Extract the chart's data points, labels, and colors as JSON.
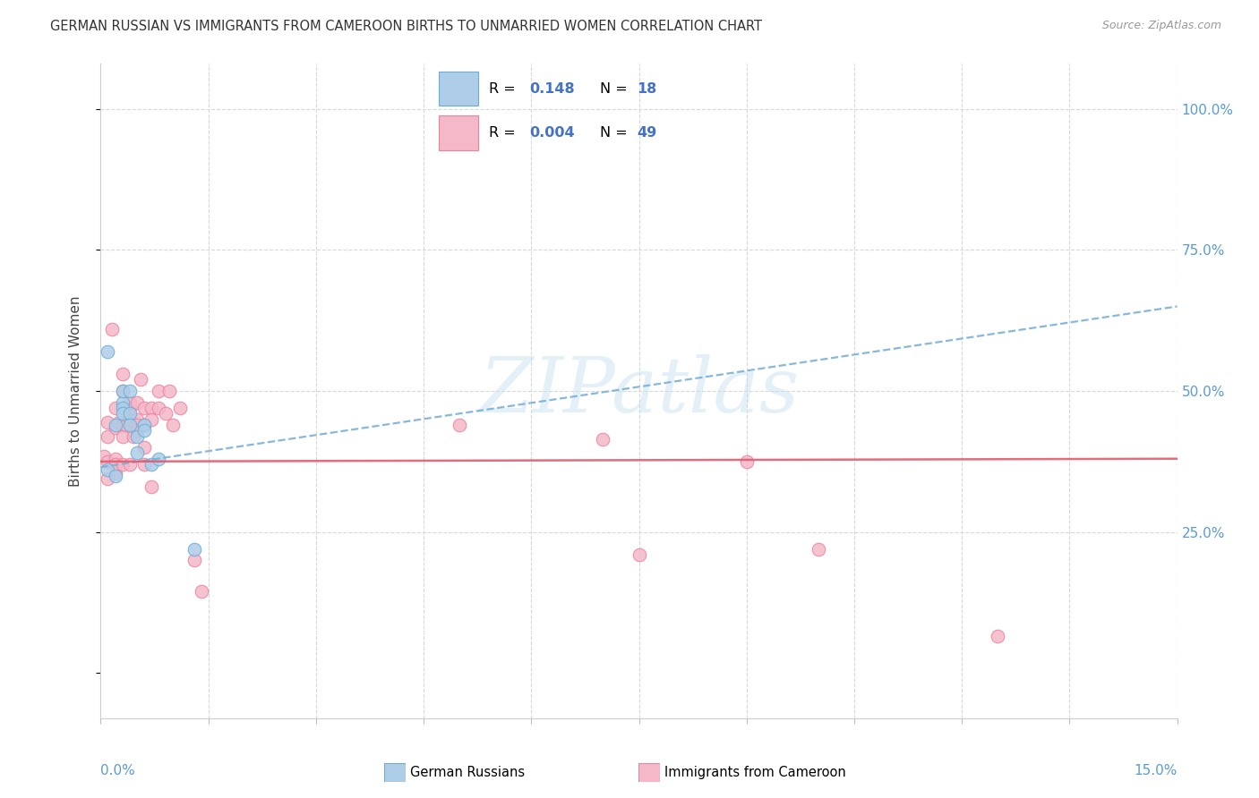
{
  "title": "GERMAN RUSSIAN VS IMMIGRANTS FROM CAMEROON BIRTHS TO UNMARRIED WOMEN CORRELATION CHART",
  "source": "Source: ZipAtlas.com",
  "ylabel": "Births to Unmarried Women",
  "xlim": [
    0.0,
    0.15
  ],
  "ylim": [
    -0.08,
    1.08
  ],
  "watermark": "ZIPatlas",
  "legend_blue_r": "0.148",
  "legend_blue_n": "18",
  "legend_pink_r": "0.004",
  "legend_pink_n": "49",
  "label_blue": "German Russians",
  "label_pink": "Immigrants from Cameroon",
  "blue_fill": "#aecde8",
  "pink_fill": "#f4b8c8",
  "blue_edge": "#6aaed6",
  "pink_edge": "#f080a0",
  "trend_blue": "#7ab0d8",
  "trend_pink": "#e05c70",
  "blue_trend_x": [
    0.0,
    0.15
  ],
  "blue_trend_y": [
    0.365,
    0.65
  ],
  "pink_trend_x": [
    0.0,
    0.15
  ],
  "pink_trend_y": [
    0.375,
    0.38
  ],
  "blue_x": [
    0.001,
    0.001,
    0.002,
    0.002,
    0.003,
    0.003,
    0.003,
    0.003,
    0.004,
    0.004,
    0.004,
    0.005,
    0.005,
    0.006,
    0.006,
    0.007,
    0.008,
    0.013
  ],
  "blue_y": [
    0.57,
    0.36,
    0.44,
    0.35,
    0.48,
    0.5,
    0.47,
    0.46,
    0.46,
    0.5,
    0.44,
    0.42,
    0.39,
    0.44,
    0.43,
    0.37,
    0.38,
    0.22
  ],
  "pink_x": [
    0.0005,
    0.001,
    0.001,
    0.001,
    0.001,
    0.0015,
    0.002,
    0.002,
    0.002,
    0.002,
    0.002,
    0.0025,
    0.003,
    0.003,
    0.003,
    0.003,
    0.003,
    0.0035,
    0.004,
    0.004,
    0.004,
    0.004,
    0.0045,
    0.005,
    0.005,
    0.005,
    0.005,
    0.0055,
    0.006,
    0.006,
    0.006,
    0.006,
    0.007,
    0.007,
    0.007,
    0.008,
    0.008,
    0.009,
    0.0095,
    0.01,
    0.011,
    0.013,
    0.014,
    0.05,
    0.07,
    0.075,
    0.09,
    0.1,
    0.125
  ],
  "pink_y": [
    0.385,
    0.445,
    0.42,
    0.375,
    0.345,
    0.61,
    0.47,
    0.435,
    0.38,
    0.355,
    0.37,
    0.445,
    0.53,
    0.5,
    0.44,
    0.42,
    0.37,
    0.44,
    0.47,
    0.45,
    0.48,
    0.37,
    0.42,
    0.48,
    0.45,
    0.44,
    0.43,
    0.52,
    0.47,
    0.44,
    0.4,
    0.37,
    0.47,
    0.45,
    0.33,
    0.47,
    0.5,
    0.46,
    0.5,
    0.44,
    0.47,
    0.2,
    0.145,
    0.44,
    0.415,
    0.21,
    0.375,
    0.22,
    0.065
  ]
}
